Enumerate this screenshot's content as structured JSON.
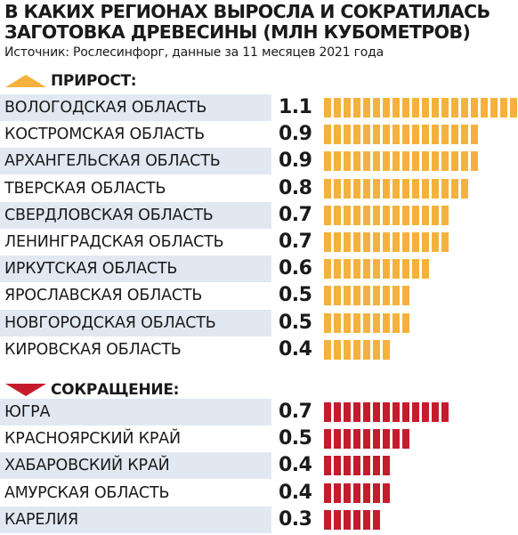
{
  "title": "В КАКИХ РЕГИОНАХ ВЫРОСЛА И СОКРАТИЛАСЬ ЗАГОТОВКА ДРЕВЕСИНЫ (МЛН КУБОМЕТРОВ)",
  "source": "Источник: Рослесинфорг, данные за 11 месяцев 2021 года",
  "colors": {
    "growth": "#f5b13d",
    "decline": "#c41c2c",
    "band": "#e2e8f1"
  },
  "chart_data": {
    "type": "bar",
    "orientation": "horizontal",
    "title": "В КАКИХ РЕГИОНАХ ВЫРОСЛА И СОКРАТИЛАСЬ ЗАГОТОВКА ДРЕВЕСИНЫ (МЛН КУБОМЕТРОВ)",
    "unit": "МЛН КУБОМЕТРОВ",
    "groups": [
      {
        "label": "ПРИРОСТ:",
        "icon": "triangle-up-icon",
        "color": "#f5b13d",
        "categories": [
          "ВОЛОГОДСКАЯ ОБЛАСТЬ",
          "КОСТРОМСКАЯ ОБЛАСТЬ",
          "АРХАНГЕЛЬСКАЯ ОБЛАСТЬ",
          "ТВЕРСКАЯ ОБЛАСТЬ",
          "СВЕРДЛОВСКАЯ ОБЛАСТЬ",
          "ЛЕНИНГРАДСКАЯ ОБЛАСТЬ",
          "ИРКУТСКАЯ ОБЛАСТЬ",
          "ЯРОСЛАВСКАЯ ОБЛАСТЬ",
          "НОВГОРОДСКАЯ ОБЛАСТЬ",
          "КИРОВСКАЯ ОБЛАСТЬ"
        ],
        "values": [
          1.1,
          0.9,
          0.9,
          0.8,
          0.7,
          0.7,
          0.6,
          0.5,
          0.5,
          0.4
        ],
        "value_labels": [
          "1.1",
          "0.9",
          "0.9",
          "0.8",
          "0.7",
          "0.7",
          "0.6",
          "0.5",
          "0.5",
          "0.4"
        ]
      },
      {
        "label": "СОКРАЩЕНИЕ:",
        "icon": "triangle-down-icon",
        "color": "#c41c2c",
        "categories": [
          "ЮГРА",
          "КРАСНОЯРСКИЙ КРАЙ",
          "ХАБАРОВСКИЙ КРАЙ",
          "АМУРСКАЯ ОБЛАСТЬ",
          "КАРЕЛИЯ"
        ],
        "values": [
          0.7,
          0.5,
          0.4,
          0.4,
          0.3
        ],
        "value_labels": [
          "0.7",
          "0.5",
          "0.4",
          "0.4",
          "0.3"
        ]
      }
    ],
    "xlim": [
      0,
      1.1
    ],
    "grid": false,
    "legend": "none"
  }
}
